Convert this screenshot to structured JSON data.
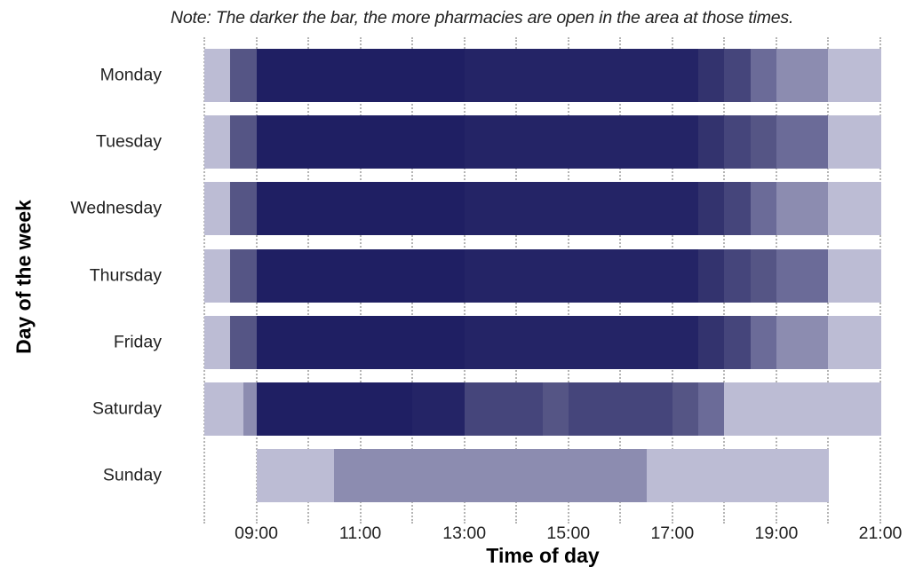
{
  "chart_data": {
    "type": "heatmap",
    "title": "",
    "subtitle": "Note: The darker the bar, the more pharmacies are open in the area at those times.",
    "xlabel": "Time of day",
    "ylabel": "Day of the week",
    "x_range_hours": [
      8,
      21
    ],
    "x_ticks": [
      "09:00",
      "11:00",
      "13:00",
      "15:00",
      "17:00",
      "19:00",
      "21:00"
    ],
    "x_tick_hours": [
      9,
      11,
      13,
      15,
      17,
      19,
      21
    ],
    "grid": "vertical dotted lines every hour",
    "legend": "none (shade intensity = number of open pharmacies)",
    "color_scale": {
      "1": "#bcbcd4",
      "2": "#8c8cb0",
      "3": "#6b6b98",
      "4": "#555585",
      "5": "#45457b",
      "6": "#33336e",
      "7": "#242466",
      "8": "#1f1f63"
    },
    "days": [
      {
        "day": "Monday",
        "segments": [
          {
            "start": 8.0,
            "end": 8.5,
            "level": 1
          },
          {
            "start": 8.5,
            "end": 9.0,
            "level": 4
          },
          {
            "start": 9.0,
            "end": 13.0,
            "level": 8
          },
          {
            "start": 13.0,
            "end": 17.5,
            "level": 7
          },
          {
            "start": 17.5,
            "end": 18.0,
            "level": 6
          },
          {
            "start": 18.0,
            "end": 18.5,
            "level": 5
          },
          {
            "start": 18.5,
            "end": 19.0,
            "level": 3
          },
          {
            "start": 19.0,
            "end": 20.0,
            "level": 2
          },
          {
            "start": 20.0,
            "end": 21.0,
            "level": 1
          }
        ]
      },
      {
        "day": "Tuesday",
        "segments": [
          {
            "start": 8.0,
            "end": 8.5,
            "level": 1
          },
          {
            "start": 8.5,
            "end": 9.0,
            "level": 4
          },
          {
            "start": 9.0,
            "end": 13.0,
            "level": 8
          },
          {
            "start": 13.0,
            "end": 17.5,
            "level": 7
          },
          {
            "start": 17.5,
            "end": 18.0,
            "level": 6
          },
          {
            "start": 18.0,
            "end": 18.5,
            "level": 5
          },
          {
            "start": 18.5,
            "end": 19.0,
            "level": 4
          },
          {
            "start": 19.0,
            "end": 20.0,
            "level": 3
          },
          {
            "start": 20.0,
            "end": 21.0,
            "level": 1
          }
        ]
      },
      {
        "day": "Wednesday",
        "segments": [
          {
            "start": 8.0,
            "end": 8.5,
            "level": 1
          },
          {
            "start": 8.5,
            "end": 9.0,
            "level": 4
          },
          {
            "start": 9.0,
            "end": 13.0,
            "level": 8
          },
          {
            "start": 13.0,
            "end": 17.5,
            "level": 7
          },
          {
            "start": 17.5,
            "end": 18.0,
            "level": 6
          },
          {
            "start": 18.0,
            "end": 18.5,
            "level": 5
          },
          {
            "start": 18.5,
            "end": 19.0,
            "level": 3
          },
          {
            "start": 19.0,
            "end": 20.0,
            "level": 2
          },
          {
            "start": 20.0,
            "end": 21.0,
            "level": 1
          }
        ]
      },
      {
        "day": "Thursday",
        "segments": [
          {
            "start": 8.0,
            "end": 8.5,
            "level": 1
          },
          {
            "start": 8.5,
            "end": 9.0,
            "level": 4
          },
          {
            "start": 9.0,
            "end": 13.0,
            "level": 8
          },
          {
            "start": 13.0,
            "end": 17.5,
            "level": 7
          },
          {
            "start": 17.5,
            "end": 18.0,
            "level": 6
          },
          {
            "start": 18.0,
            "end": 18.5,
            "level": 5
          },
          {
            "start": 18.5,
            "end": 19.0,
            "level": 4
          },
          {
            "start": 19.0,
            "end": 20.0,
            "level": 3
          },
          {
            "start": 20.0,
            "end": 21.0,
            "level": 1
          }
        ]
      },
      {
        "day": "Friday",
        "segments": [
          {
            "start": 8.0,
            "end": 8.5,
            "level": 1
          },
          {
            "start": 8.5,
            "end": 9.0,
            "level": 4
          },
          {
            "start": 9.0,
            "end": 13.0,
            "level": 8
          },
          {
            "start": 13.0,
            "end": 17.5,
            "level": 7
          },
          {
            "start": 17.5,
            "end": 18.0,
            "level": 6
          },
          {
            "start": 18.0,
            "end": 18.5,
            "level": 5
          },
          {
            "start": 18.5,
            "end": 19.0,
            "level": 3
          },
          {
            "start": 19.0,
            "end": 20.0,
            "level": 2
          },
          {
            "start": 20.0,
            "end": 21.0,
            "level": 1
          }
        ]
      },
      {
        "day": "Saturday",
        "segments": [
          {
            "start": 8.0,
            "end": 8.75,
            "level": 1
          },
          {
            "start": 8.75,
            "end": 9.0,
            "level": 2
          },
          {
            "start": 9.0,
            "end": 12.0,
            "level": 8
          },
          {
            "start": 12.0,
            "end": 13.0,
            "level": 7
          },
          {
            "start": 13.0,
            "end": 14.5,
            "level": 5
          },
          {
            "start": 14.5,
            "end": 15.0,
            "level": 4
          },
          {
            "start": 15.0,
            "end": 17.0,
            "level": 5
          },
          {
            "start": 17.0,
            "end": 17.5,
            "level": 4
          },
          {
            "start": 17.5,
            "end": 18.0,
            "level": 3
          },
          {
            "start": 18.0,
            "end": 21.0,
            "level": 1
          }
        ]
      },
      {
        "day": "Sunday",
        "segments": [
          {
            "start": 9.0,
            "end": 10.5,
            "level": 1
          },
          {
            "start": 10.5,
            "end": 16.5,
            "level": 2
          },
          {
            "start": 16.5,
            "end": 20.0,
            "level": 1
          }
        ]
      }
    ]
  }
}
